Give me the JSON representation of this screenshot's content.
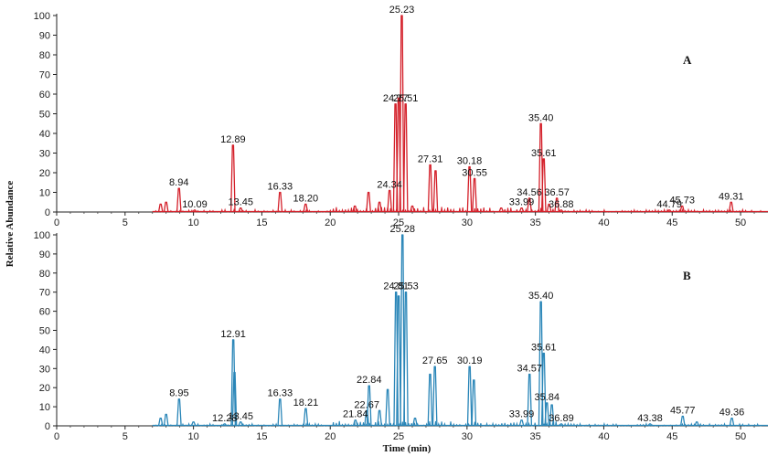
{
  "chart_data": {
    "type": "line",
    "xlabel": "Time (min)",
    "ylabel": "Relative Abundance",
    "xlim": [
      0,
      52
    ],
    "ylim": [
      0,
      100
    ],
    "x_ticks": [
      "0",
      "5",
      "10",
      "15",
      "20",
      "25",
      "30",
      "35",
      "40",
      "45",
      "50"
    ],
    "y_ticks": [
      "0",
      "10",
      "20",
      "30",
      "40",
      "50",
      "60",
      "70",
      "80",
      "90",
      "100"
    ],
    "panels": [
      {
        "label": "A",
        "color": "#d4202a",
        "peaks": [
          {
            "x": 7.6,
            "y": 4
          },
          {
            "x": 8.0,
            "y": 5
          },
          {
            "x": 8.94,
            "y": 12,
            "label": "8.94"
          },
          {
            "x": 10.09,
            "y": 1,
            "label": "10.09"
          },
          {
            "x": 12.89,
            "y": 34,
            "label": "12.89"
          },
          {
            "x": 13.45,
            "y": 2,
            "label": "13.45"
          },
          {
            "x": 16.33,
            "y": 10,
            "label": "16.33"
          },
          {
            "x": 18.2,
            "y": 4,
            "label": "18.20"
          },
          {
            "x": 21.8,
            "y": 3
          },
          {
            "x": 22.8,
            "y": 10
          },
          {
            "x": 23.6,
            "y": 5
          },
          {
            "x": 24.34,
            "y": 11,
            "label": "24.34"
          },
          {
            "x": 24.77,
            "y": 55,
            "label": "24.77"
          },
          {
            "x": 25.0,
            "y": 58
          },
          {
            "x": 25.23,
            "y": 100,
            "label": "25.23"
          },
          {
            "x": 25.51,
            "y": 55,
            "label": "25.51"
          },
          {
            "x": 26.0,
            "y": 3
          },
          {
            "x": 27.31,
            "y": 24,
            "label": "27.31"
          },
          {
            "x": 27.7,
            "y": 21
          },
          {
            "x": 30.18,
            "y": 23,
            "label": "30.18"
          },
          {
            "x": 30.55,
            "y": 17,
            "label": "30.55"
          },
          {
            "x": 32.5,
            "y": 2
          },
          {
            "x": 33.99,
            "y": 2,
            "label": "33.99"
          },
          {
            "x": 34.56,
            "y": 7,
            "label": "34.56"
          },
          {
            "x": 35.4,
            "y": 45,
            "label": "35.40"
          },
          {
            "x": 35.61,
            "y": 27,
            "label": "35.61"
          },
          {
            "x": 36.0,
            "y": 4
          },
          {
            "x": 36.57,
            "y": 7,
            "label": "36.57"
          },
          {
            "x": 36.88,
            "y": 1,
            "label": "36.88"
          },
          {
            "x": 44.79,
            "y": 1,
            "label": "44.79"
          },
          {
            "x": 45.73,
            "y": 3,
            "label": "45.73"
          },
          {
            "x": 49.31,
            "y": 5,
            "label": "49.31"
          }
        ]
      },
      {
        "label": "B",
        "color": "#2a86b8",
        "peaks": [
          {
            "x": 7.6,
            "y": 4
          },
          {
            "x": 8.0,
            "y": 6
          },
          {
            "x": 8.95,
            "y": 14,
            "label": "8.95"
          },
          {
            "x": 10.0,
            "y": 2
          },
          {
            "x": 12.28,
            "y": 1,
            "label": "12.28"
          },
          {
            "x": 12.91,
            "y": 45,
            "label": "12.91"
          },
          {
            "x": 13.0,
            "y": 28
          },
          {
            "x": 13.45,
            "y": 2,
            "label": "13.45"
          },
          {
            "x": 16.33,
            "y": 14,
            "label": "16.33"
          },
          {
            "x": 18.21,
            "y": 9,
            "label": "18.21"
          },
          {
            "x": 21.84,
            "y": 3,
            "label": "21.84"
          },
          {
            "x": 22.67,
            "y": 8,
            "label": "22.67"
          },
          {
            "x": 22.84,
            "y": 21,
            "label": "22.84"
          },
          {
            "x": 23.6,
            "y": 8
          },
          {
            "x": 24.2,
            "y": 19
          },
          {
            "x": 24.81,
            "y": 70,
            "label": "24.81"
          },
          {
            "x": 25.0,
            "y": 68
          },
          {
            "x": 25.28,
            "y": 100,
            "label": "25.28"
          },
          {
            "x": 25.53,
            "y": 70,
            "label": "25.53"
          },
          {
            "x": 26.2,
            "y": 4
          },
          {
            "x": 27.3,
            "y": 27
          },
          {
            "x": 27.65,
            "y": 31,
            "label": "27.65"
          },
          {
            "x": 30.19,
            "y": 31,
            "label": "30.19"
          },
          {
            "x": 30.5,
            "y": 24
          },
          {
            "x": 33.99,
            "y": 3,
            "label": "33.99"
          },
          {
            "x": 34.57,
            "y": 27,
            "label": "34.57"
          },
          {
            "x": 35.4,
            "y": 65,
            "label": "35.40"
          },
          {
            "x": 35.61,
            "y": 38,
            "label": "35.61"
          },
          {
            "x": 35.84,
            "y": 12,
            "label": "35.84"
          },
          {
            "x": 36.2,
            "y": 11
          },
          {
            "x": 36.89,
            "y": 1,
            "label": "36.89"
          },
          {
            "x": 43.38,
            "y": 1,
            "label": "43.38"
          },
          {
            "x": 45.77,
            "y": 5,
            "label": "45.77"
          },
          {
            "x": 46.8,
            "y": 2
          },
          {
            "x": 49.36,
            "y": 4,
            "label": "49.36"
          }
        ]
      }
    ]
  }
}
